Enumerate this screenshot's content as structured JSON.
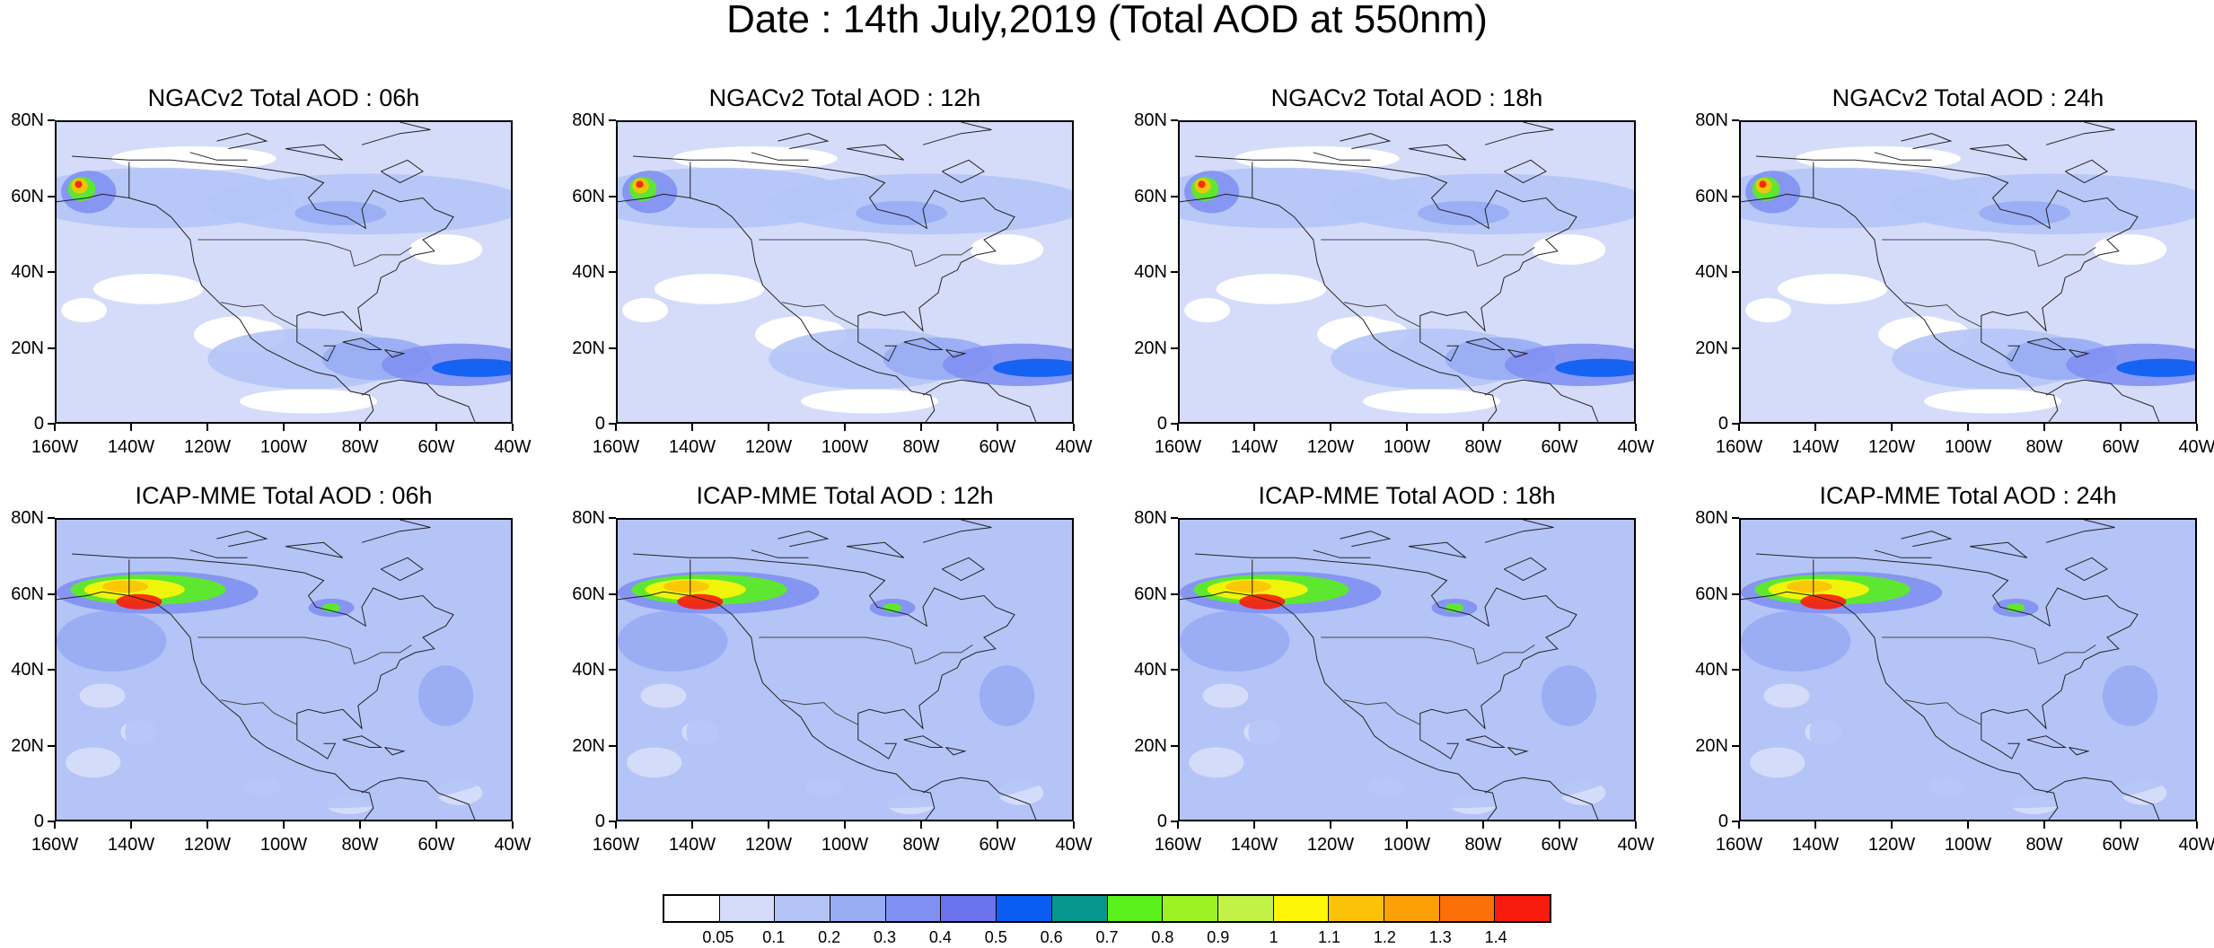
{
  "figure": {
    "title": "Date : 14th July,2019 (Total AOD at 550nm)"
  },
  "axes": {
    "lat_labels": [
      "80N",
      "60N",
      "40N",
      "20N",
      "0"
    ],
    "lon_labels": [
      "160W",
      "140W",
      "120W",
      "100W",
      "80W",
      "60W",
      "40W"
    ]
  },
  "panels": [
    {
      "title": "NGACv2 Total AOD : 06h",
      "model": "NGACv2",
      "lead": "06h"
    },
    {
      "title": "NGACv2 Total AOD : 12h",
      "model": "NGACv2",
      "lead": "12h"
    },
    {
      "title": "NGACv2 Total AOD : 18h",
      "model": "NGACv2",
      "lead": "18h"
    },
    {
      "title": "NGACv2 Total AOD : 24h",
      "model": "NGACv2",
      "lead": "24h"
    },
    {
      "title": "ICAP-MME Total AOD : 06h",
      "model": "ICAP-MME",
      "lead": "06h"
    },
    {
      "title": "ICAP-MME Total AOD : 12h",
      "model": "ICAP-MME",
      "lead": "12h"
    },
    {
      "title": "ICAP-MME Total AOD : 18h",
      "model": "ICAP-MME",
      "lead": "18h"
    },
    {
      "title": "ICAP-MME Total AOD : 24h",
      "model": "ICAP-MME",
      "lead": "24h"
    }
  ],
  "map_extent": {
    "lon_min": -160,
    "lon_max": -40,
    "lat_min": 0,
    "lat_max": 80
  },
  "colorbar": {
    "labels": [
      "0.05",
      "0.1",
      "0.2",
      "0.3",
      "0.4",
      "0.5",
      "0.6",
      "0.7",
      "0.8",
      "0.9",
      "1",
      "1.1",
      "1.2",
      "1.3",
      "1.4"
    ],
    "colors": [
      "#ffffff",
      "#d4dcfa",
      "#b4c4f6",
      "#98acf4",
      "#8090f2",
      "#6a72ee",
      "#0a5cf2",
      "#06988e",
      "#5af01c",
      "#9cf222",
      "#c2f246",
      "#fef608",
      "#fcc208",
      "#fca008",
      "#fc700a",
      "#f81c0e"
    ]
  }
}
